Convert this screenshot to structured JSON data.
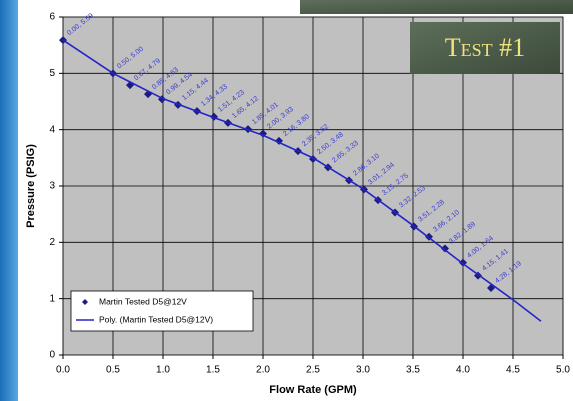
{
  "chart_data": {
    "type": "scatter",
    "title": "Test #1",
    "x_label": "Flow Rate (GPM)",
    "y_label": "Pressure (PSIG)",
    "xlim": [
      0,
      5
    ],
    "ylim": [
      0,
      6
    ],
    "xticks": [
      {
        "value": 0,
        "label": "0.0"
      },
      {
        "value": 0.5,
        "label": "0.5"
      },
      {
        "value": 1,
        "label": "1.0"
      },
      {
        "value": 1.5,
        "label": "1.5"
      },
      {
        "value": 2,
        "label": "2.0"
      },
      {
        "value": 2.5,
        "label": "2.5"
      },
      {
        "value": 3,
        "label": "3.0"
      },
      {
        "value": 3.5,
        "label": "3.5"
      },
      {
        "value": 4,
        "label": "4.0"
      },
      {
        "value": 4.5,
        "label": "4.5"
      },
      {
        "value": 5,
        "label": "5.0"
      }
    ],
    "yticks": [
      0,
      1,
      2,
      3,
      4,
      5,
      6
    ],
    "grid": true,
    "legend": "lower left",
    "series": [
      {
        "name": "Martin Tested D5@12V",
        "type": "scatter",
        "color": "#1c1c80",
        "x": [
          0.0,
          0.5,
          0.67,
          0.85,
          0.99,
          1.15,
          1.34,
          1.51,
          1.65,
          1.85,
          2.0,
          2.16,
          2.35,
          2.5,
          2.65,
          2.86,
          3.01,
          3.15,
          3.32,
          3.51,
          3.66,
          3.82,
          4.0,
          4.15,
          4.28
        ],
        "values": [
          5.59,
          5.0,
          4.79,
          4.63,
          4.54,
          4.44,
          4.33,
          4.23,
          4.12,
          4.01,
          3.93,
          3.8,
          3.62,
          3.48,
          3.33,
          3.1,
          2.94,
          2.75,
          2.53,
          2.28,
          2.1,
          1.89,
          1.64,
          1.41,
          1.19
        ],
        "value_labels": [
          "0.00, 5.59",
          "0.50, 5.00",
          "0.67, 4.79",
          "0.85, 4.63",
          "0.99, 4.54",
          "1.15, 4.44",
          "1.34, 4.33",
          "1.51, 4.23",
          "1.65, 4.12",
          "1.85, 4.01",
          "2.00, 3.93",
          "2.16, 3.80",
          "2.35, 3.62",
          "2.50, 3.48",
          "2.65, 3.33",
          "2.86, 3.10",
          "3.01, 2.94",
          "3.15, 2.75",
          "3.32, 2.53",
          "3.51, 2.28",
          "3.66, 2.10",
          "3.82, 1.89",
          "4.00, 1.64",
          "4.15, 1.41",
          "4.28, 1.19"
        ]
      },
      {
        "name": "Poly. (Martin Tested D5@12V)",
        "type": "line",
        "color": "#2424c8",
        "x": [
          0,
          0.5,
          1,
          1.5,
          2,
          2.5,
          3,
          3.5,
          4,
          4.5,
          4.78
        ],
        "values": [
          5.59,
          5.0,
          4.55,
          4.22,
          3.9,
          3.5,
          2.95,
          2.3,
          1.62,
          0.98,
          0.6
        ]
      }
    ]
  }
}
